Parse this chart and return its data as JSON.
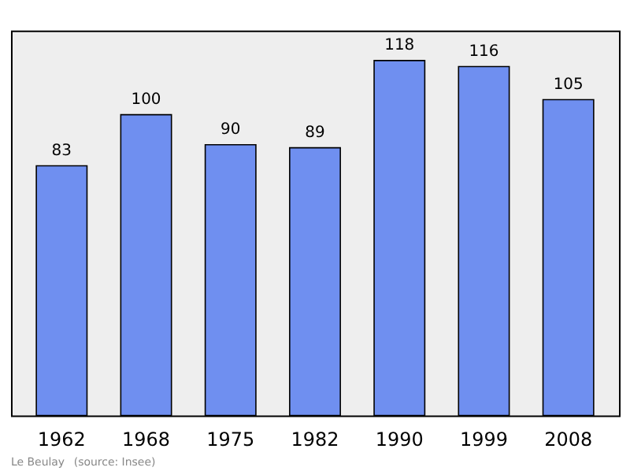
{
  "chart_data": {
    "type": "bar",
    "categories": [
      "1962",
      "1968",
      "1975",
      "1982",
      "1990",
      "1999",
      "2008"
    ],
    "values": [
      83,
      100,
      90,
      89,
      118,
      116,
      105
    ],
    "color": "#6f8ff0",
    "ylim": [
      0,
      128
    ],
    "data_labels": true,
    "grid": false,
    "tick_labels": "x",
    "annotations": [
      "Le Beulay",
      "(source: Insee)"
    ]
  }
}
